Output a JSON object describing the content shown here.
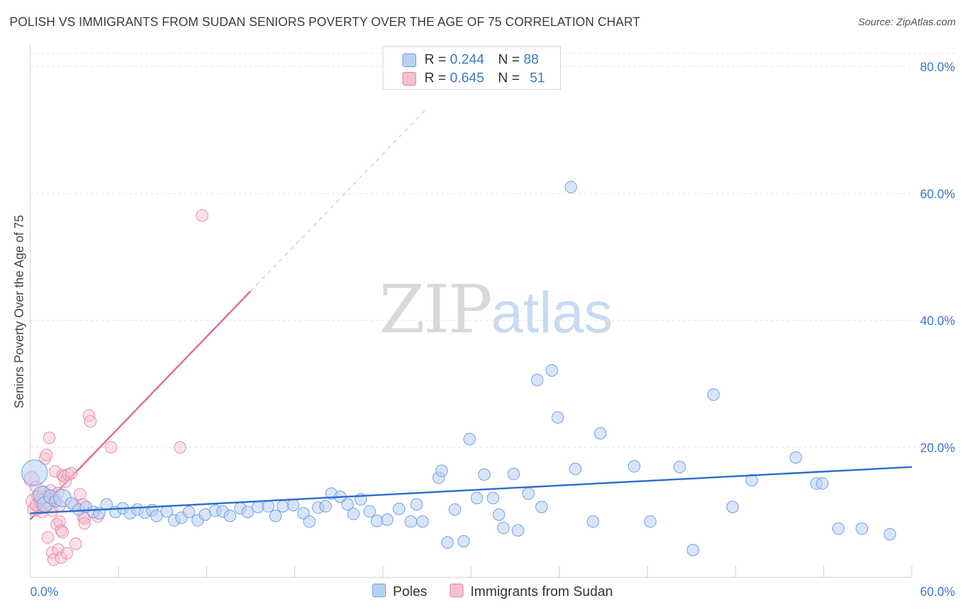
{
  "title": "POLISH VS IMMIGRANTS FROM SUDAN SENIORS POVERTY OVER THE AGE OF 75 CORRELATION CHART",
  "source": "Source: ZipAtlas.com",
  "watermark": {
    "zip": "ZIP",
    "atlas": "atlas"
  },
  "legend": {
    "poles": {
      "r_label": "R = ",
      "r": "0.244",
      "n_label": "N = ",
      "n": "88",
      "color": "#6d9ee3",
      "fill": "#b8d0f3"
    },
    "sudan": {
      "r_label": "R = ",
      "r": "0.645",
      "n_label": "N = ",
      "n": "51",
      "color": "#e889a9",
      "fill": "#f6bfd1"
    }
  },
  "bottom_legend": {
    "poles": "Poles",
    "sudan": "Immigrants from Sudan"
  },
  "chart_data": {
    "type": "scatter",
    "title": "POLISH VS IMMIGRANTS FROM SUDAN SENIORS POVERTY OVER THE AGE OF 75 CORRELATION CHART",
    "xlabel": "",
    "ylabel": "Seniors Poverty Over the Age of 75",
    "xlim": [
      0,
      60
    ],
    "ylim": [
      0,
      84
    ],
    "x_tick_labels": [
      "0.0%",
      "60.0%"
    ],
    "y_ticks": [
      20,
      40,
      60,
      80
    ],
    "y_tick_labels": [
      "20.0%",
      "40.0%",
      "60.0%",
      "80.0%"
    ],
    "grid": true,
    "series": [
      {
        "name": "Poles",
        "color": "#6d9ee3",
        "trend": {
          "x0": 0,
          "y0": 9.6,
          "x1": 60,
          "y1": 16.9,
          "color": "#2b6fce"
        },
        "points": [
          [
            0.3,
            16.0,
            2.2
          ],
          [
            0.8,
            12.5,
            1.5
          ],
          [
            1.0,
            11.0,
            1.3
          ],
          [
            1.4,
            12.2,
            1.2
          ],
          [
            1.7,
            11.5,
            1.0
          ],
          [
            2.2,
            12.0,
            1.5
          ],
          [
            2.8,
            11.2,
            1.0
          ],
          [
            3.3,
            10.2,
            1.0
          ],
          [
            3.8,
            10.6,
            1.0
          ],
          [
            4.3,
            9.8,
            1.0
          ],
          [
            4.7,
            9.6,
            1.0
          ],
          [
            5.2,
            11.0,
            1.0
          ],
          [
            5.8,
            9.8,
            1.0
          ],
          [
            6.3,
            10.4,
            1.0
          ],
          [
            6.8,
            9.6,
            1.0
          ],
          [
            7.3,
            10.2,
            1.0
          ],
          [
            7.8,
            9.7,
            1.0
          ],
          [
            8.3,
            10.1,
            1.0
          ],
          [
            8.6,
            9.2,
            1.0
          ],
          [
            9.3,
            9.9,
            1.0
          ],
          [
            9.8,
            8.5,
            1.0
          ],
          [
            10.3,
            8.9,
            1.0
          ],
          [
            10.8,
            9.8,
            1.0
          ],
          [
            11.4,
            8.5,
            1.0
          ],
          [
            11.9,
            9.4,
            1.0
          ],
          [
            12.6,
            10.0,
            1.0
          ],
          [
            13.1,
            9.9,
            1.0
          ],
          [
            13.6,
            9.2,
            1.0
          ],
          [
            14.3,
            10.4,
            1.0
          ],
          [
            14.8,
            9.8,
            1.0
          ],
          [
            15.5,
            10.6,
            1.0
          ],
          [
            16.2,
            10.7,
            1.0
          ],
          [
            16.7,
            9.2,
            1.0
          ],
          [
            17.2,
            10.7,
            1.0
          ],
          [
            17.9,
            10.9,
            1.0
          ],
          [
            18.6,
            9.6,
            1.0
          ],
          [
            19.0,
            8.3,
            1.0
          ],
          [
            19.6,
            10.5,
            1.0
          ],
          [
            20.1,
            10.7,
            1.0
          ],
          [
            20.5,
            12.7,
            1.0
          ],
          [
            21.1,
            12.2,
            1.0
          ],
          [
            21.6,
            11.0,
            1.0
          ],
          [
            22.0,
            9.5,
            1.0
          ],
          [
            22.5,
            11.8,
            1.0
          ],
          [
            23.1,
            9.9,
            1.0
          ],
          [
            23.6,
            8.4,
            1.0
          ],
          [
            24.3,
            8.6,
            1.0
          ],
          [
            25.1,
            10.3,
            1.0
          ],
          [
            25.9,
            8.3,
            1.0
          ],
          [
            26.3,
            11.0,
            1.0
          ],
          [
            26.7,
            8.3,
            1.0
          ],
          [
            27.8,
            15.2,
            1.0
          ],
          [
            28.0,
            16.3,
            1.0
          ],
          [
            28.4,
            5.0,
            1.0
          ],
          [
            28.9,
            10.2,
            1.0
          ],
          [
            29.5,
            5.2,
            1.0
          ],
          [
            29.9,
            21.3,
            1.0
          ],
          [
            30.4,
            12.0,
            1.0
          ],
          [
            30.9,
            15.7,
            1.0
          ],
          [
            31.5,
            12.0,
            1.0
          ],
          [
            31.9,
            9.4,
            1.0
          ],
          [
            32.2,
            7.3,
            1.0
          ],
          [
            32.9,
            15.8,
            1.0
          ],
          [
            33.2,
            6.9,
            1.0
          ],
          [
            33.9,
            12.7,
            1.0
          ],
          [
            34.5,
            30.6,
            1.0
          ],
          [
            34.8,
            10.6,
            1.0
          ],
          [
            35.5,
            32.1,
            1.0
          ],
          [
            35.9,
            24.7,
            1.0
          ],
          [
            36.8,
            61.0,
            1.0
          ],
          [
            37.1,
            16.6,
            1.0
          ],
          [
            38.3,
            8.3,
            1.0
          ],
          [
            38.8,
            22.2,
            1.0
          ],
          [
            41.1,
            17.0,
            1.0
          ],
          [
            42.2,
            8.3,
            1.0
          ],
          [
            44.2,
            16.9,
            1.0
          ],
          [
            45.1,
            3.8,
            1.0
          ],
          [
            46.5,
            28.3,
            1.0
          ],
          [
            47.8,
            10.6,
            1.0
          ],
          [
            49.1,
            14.8,
            1.0
          ],
          [
            52.1,
            18.4,
            1.0
          ],
          [
            53.5,
            14.3,
            1.0
          ],
          [
            53.9,
            14.3,
            1.0
          ],
          [
            55.0,
            7.2,
            1.0
          ],
          [
            56.6,
            7.2,
            1.0
          ],
          [
            58.5,
            6.3,
            1.0
          ]
        ]
      },
      {
        "name": "Immigrants from Sudan",
        "color": "#e889a9",
        "trend": {
          "x0": 0,
          "y0": 8.6,
          "x1": 15,
          "y1": 44.6,
          "color": "#e26a95",
          "dashed_to": {
            "x": 27,
            "y": 73.4
          }
        },
        "points": [
          [
            0.1,
            15.0,
            1.3
          ],
          [
            0.2,
            11.5,
            1.2
          ],
          [
            0.3,
            10.2,
            1.2
          ],
          [
            0.4,
            13.8,
            1.0
          ],
          [
            0.5,
            12.3,
            1.0
          ],
          [
            0.6,
            10.4,
            1.0
          ],
          [
            0.7,
            11.3,
            1.0
          ],
          [
            0.8,
            9.8,
            1.0
          ],
          [
            0.9,
            13.0,
            1.0
          ],
          [
            1.0,
            18.2,
            1.0
          ],
          [
            1.0,
            10.5,
            1.0
          ],
          [
            1.1,
            18.8,
            1.0
          ],
          [
            1.2,
            12.5,
            1.0
          ],
          [
            1.2,
            5.8,
            1.0
          ],
          [
            1.3,
            21.5,
            1.0
          ],
          [
            1.3,
            11.0,
            1.0
          ],
          [
            1.4,
            13.2,
            1.0
          ],
          [
            1.5,
            3.4,
            1.0
          ],
          [
            1.5,
            10.0,
            1.0
          ],
          [
            1.6,
            2.3,
            1.0
          ],
          [
            1.6,
            12.0,
            1.0
          ],
          [
            1.7,
            16.2,
            1.0
          ],
          [
            1.8,
            7.9,
            1.0
          ],
          [
            1.9,
            12.8,
            1.0
          ],
          [
            1.9,
            3.9,
            1.0
          ],
          [
            2.0,
            10.8,
            1.0
          ],
          [
            2.0,
            8.3,
            1.0
          ],
          [
            2.1,
            6.9,
            1.0
          ],
          [
            2.1,
            2.6,
            1.0
          ],
          [
            2.2,
            6.6,
            1.0
          ],
          [
            2.2,
            15.6,
            1.0
          ],
          [
            2.3,
            15.4,
            1.0
          ],
          [
            2.4,
            14.6,
            1.0
          ],
          [
            2.5,
            3.3,
            1.0
          ],
          [
            2.6,
            15.7,
            1.0
          ],
          [
            2.8,
            15.9,
            1.0
          ],
          [
            3.0,
            10.9,
            1.0
          ],
          [
            3.1,
            4.8,
            1.0
          ],
          [
            3.4,
            12.6,
            1.0
          ],
          [
            3.6,
            11.0,
            1.0
          ],
          [
            3.6,
            9.0,
            1.0
          ],
          [
            3.7,
            8.8,
            1.0
          ],
          [
            3.7,
            8.0,
            1.0
          ],
          [
            4.0,
            25.0,
            1.0
          ],
          [
            4.1,
            24.1,
            1.0
          ],
          [
            4.6,
            9.1,
            1.0
          ],
          [
            5.5,
            20.0,
            1.0
          ],
          [
            10.2,
            20.0,
            1.0
          ],
          [
            11.7,
            56.5,
            1.0
          ],
          [
            0.7,
            11.8,
            1.0
          ],
          [
            0.4,
            10.9,
            1.0
          ]
        ]
      }
    ]
  }
}
